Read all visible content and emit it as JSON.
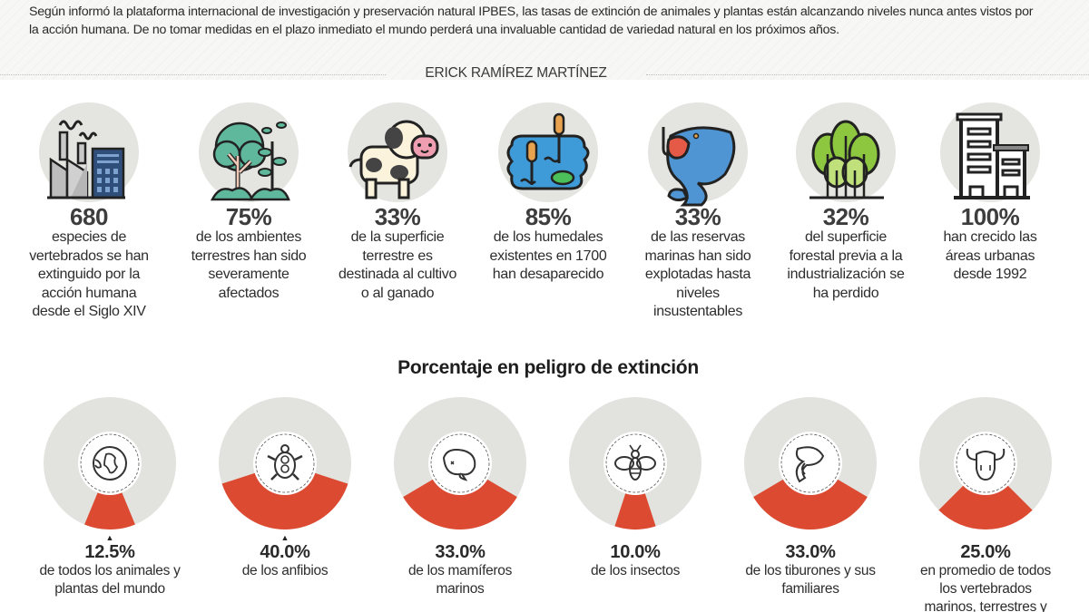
{
  "intro": {
    "text": "Según informó la plataforma internacional de investigación y preservación natural IPBES, las tasas de extinción de animales y plantas están alcanzando niveles nunca antes vistos por la acción humana. De no tomar medidas en el plazo inmediato el mundo perderá una invaluable cantidad de variedad natural en los próximos años.",
    "byline": "ERICK RAMÍREZ MARTÍNEZ"
  },
  "stats": [
    {
      "icon": "factory-icon",
      "value": "680",
      "lines": [
        "especies de",
        "vertebrados se han",
        "extinguido por la",
        "acción humana",
        "desde el Siglo XIV"
      ]
    },
    {
      "icon": "forest-plants-icon",
      "value": "75%",
      "lines": [
        "de los ambientes",
        "terrestres han sido",
        "severamente",
        "afectados"
      ]
    },
    {
      "icon": "cow-icon",
      "value": "33%",
      "lines": [
        "de la superficie",
        "terrestre es",
        "destinada al cultivo",
        "o al ganado"
      ]
    },
    {
      "icon": "wetland-pond-icon",
      "value": "85%",
      "lines": [
        "de los humedales",
        "existentes en 1700",
        "han desaparecido"
      ]
    },
    {
      "icon": "hooked-fish-icon",
      "value": "33%",
      "lines": [
        "de las reservas",
        "marinas han sido",
        "explotadas hasta",
        "niveles",
        "insustentables"
      ]
    },
    {
      "icon": "trees-icon",
      "value": "32%",
      "lines": [
        "del superficie",
        "forestal previa a la",
        "industrialización se",
        "ha perdido"
      ]
    },
    {
      "icon": "buildings-icon",
      "value": "100%",
      "lines": [
        "han crecido las",
        "áreas urbanas",
        "desde 1992"
      ]
    }
  ],
  "colors": {
    "wedge": "#dc4a32",
    "ring": "#e2e2de",
    "icon_circle": "#e4e4e0",
    "ink": "#2b2b2b"
  },
  "chart_data": {
    "type": "pie",
    "title": "Porcentaje en peligro de extinción",
    "unit": "%",
    "categories": [
      "de todos los animales y plantas del mundo",
      "de los anfibios",
      "de los mamíferos marinos",
      "de los insectos",
      "de los tiburones y sus familiares",
      "en promedio de todos los vertebrados marinos, terrestres y"
    ],
    "values": [
      12.5,
      40.0,
      33.0,
      10.0,
      33.0,
      25.0
    ],
    "items": [
      {
        "icon": "globe-icon",
        "value": 12.5,
        "label": "12.5%",
        "lines": [
          "de todos los animales y",
          "plantas del mundo"
        ],
        "marker": "▲"
      },
      {
        "icon": "turtle-icon",
        "value": 40.0,
        "label": "40.0%",
        "lines": [
          "de los anfibios"
        ],
        "marker": "▲"
      },
      {
        "icon": "whale-icon",
        "value": 33.0,
        "label": "33.0%",
        "lines": [
          "de los mamíferos",
          "marinos"
        ],
        "marker": ""
      },
      {
        "icon": "bee-icon",
        "value": 10.0,
        "label": "10.0%",
        "lines": [
          "de los insectos"
        ],
        "marker": ""
      },
      {
        "icon": "shark-icon",
        "value": 33.0,
        "label": "33.0%",
        "lines": [
          "de los tiburones y sus",
          "familiares"
        ],
        "marker": ""
      },
      {
        "icon": "bull-skull-icon",
        "value": 25.0,
        "label": "25.0%",
        "lines": [
          "en promedio de todos",
          "los vertebrados",
          "marinos, terrestres y"
        ],
        "marker": ""
      }
    ]
  }
}
